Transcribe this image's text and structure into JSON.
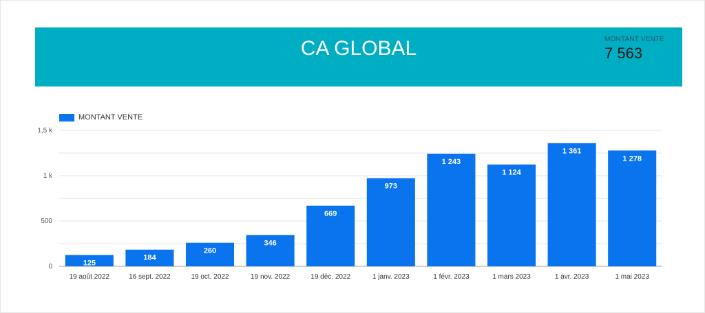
{
  "header": {
    "title": "CA GLOBAL",
    "kpi_label": "MONTANT VENTE",
    "kpi_value": "7 563",
    "background": "#00aec4"
  },
  "chart_data": {
    "type": "bar",
    "categories": [
      "19 août 2022",
      "16 sept. 2022",
      "19 oct. 2022",
      "19 nov. 2022",
      "19 déc. 2022",
      "1 janv. 2023",
      "1 févr. 2023",
      "1 mars 2023",
      "1 avr. 2023",
      "1 mai 2023"
    ],
    "series": [
      {
        "name": "MONTANT VENTE",
        "values": [
          125,
          184,
          260,
          346,
          669,
          973,
          1243,
          1124,
          1361,
          1278
        ],
        "value_labels": [
          "125",
          "184",
          "260",
          "346",
          "669",
          "973",
          "1 243",
          "1 124",
          "1 361",
          "1 278"
        ],
        "color": "#0a73ee"
      }
    ],
    "yticks": [
      0,
      500,
      1000,
      1500
    ],
    "ytick_labels": [
      "0",
      "500",
      "1 k",
      "1,5 k"
    ],
    "ylim": [
      0,
      1500
    ],
    "grid": true,
    "legend_position": "top-left"
  }
}
